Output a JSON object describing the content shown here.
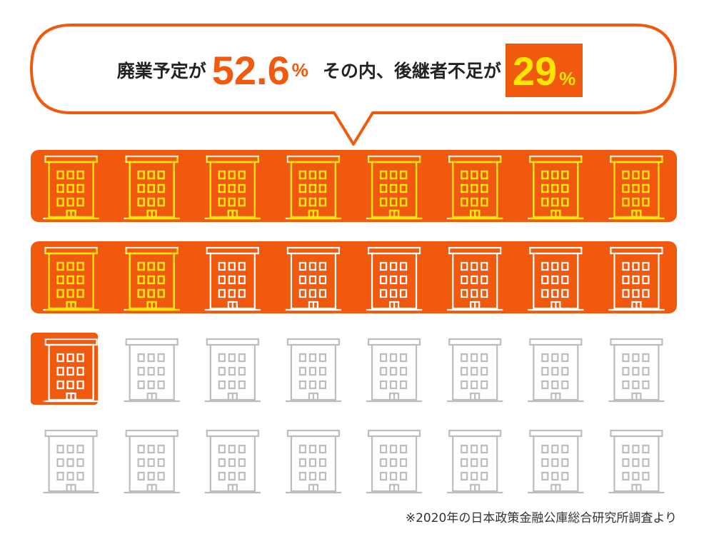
{
  "headline": {
    "part1": "廃業予定が",
    "value1": "52.6",
    "unit1": "%",
    "part2": "その内、後継者不足が",
    "value2": "29",
    "unit2": "%"
  },
  "colors": {
    "orange": "#f15a0e",
    "yellow": "#ffe600",
    "grey": "#bdbdbd",
    "text": "#222222"
  },
  "chart_data": {
    "type": "pictogram",
    "total_icons": 32,
    "icons_per_row": 8,
    "icon": "building-icon",
    "series": [
      {
        "name": "廃業予定",
        "value": 52.6,
        "unit": "%"
      },
      {
        "name": "後継者不足",
        "value": 29,
        "unit": "%"
      }
    ]
  },
  "footer": {
    "source": "※2020年の日本政策金融公庫総合研究所調査より"
  }
}
